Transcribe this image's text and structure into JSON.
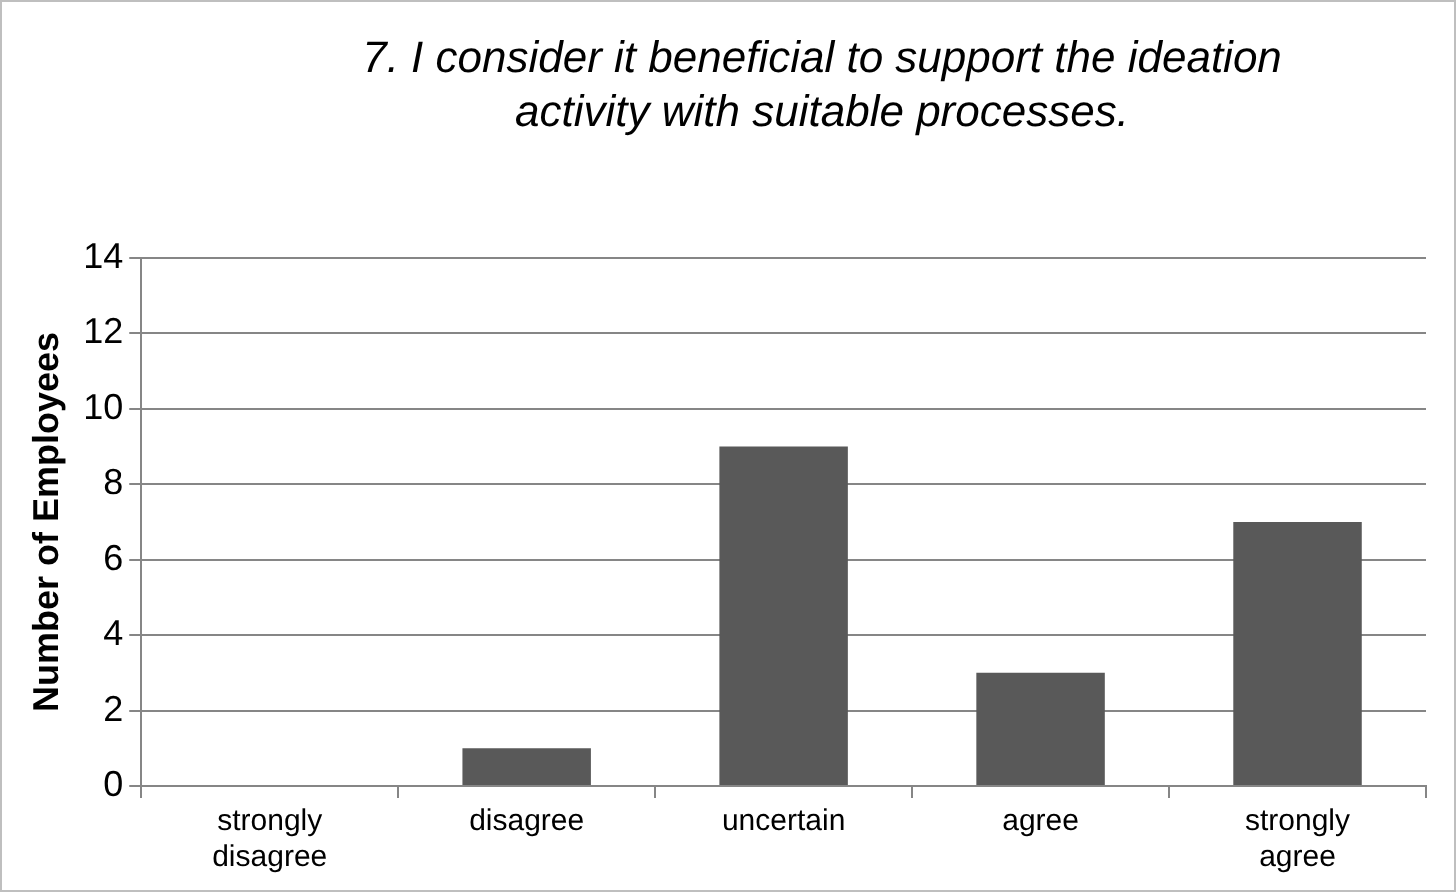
{
  "chart_data": {
    "type": "bar",
    "title": "7. I consider it beneficial to support the ideation activity with suitable processes.",
    "ylabel": "Number of Employees",
    "categories": [
      "strongly disagree",
      "disagree",
      "uncertain",
      "agree",
      "strongly agree"
    ],
    "values": [
      0,
      1,
      9,
      3,
      7
    ],
    "color": "#595959",
    "ylim": [
      0,
      14
    ],
    "yticks": [
      0,
      2,
      4,
      6,
      8,
      10,
      12,
      14
    ],
    "grid": "y"
  }
}
